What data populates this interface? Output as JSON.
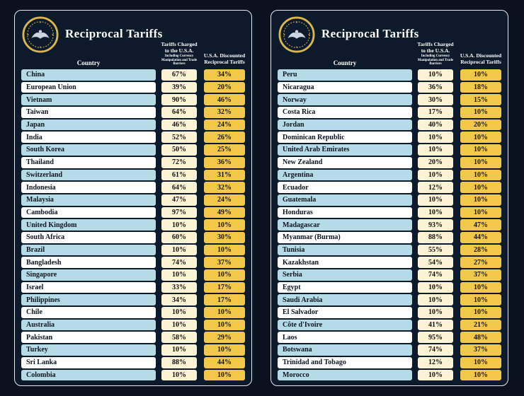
{
  "panels": [
    {
      "title": "Reciprocal Tariffs",
      "country_header": "Country",
      "charged_header_line1": "Tariffs Charged",
      "charged_header_line2": "to the U.S.A.",
      "charged_subheader": "Including Currency Manipulation and Trade Barriers",
      "discounted_header_line1": "U.S.A. Discounted",
      "discounted_header_line2": "Reciprocal Tariffs"
    },
    {
      "title": "Reciprocal Tariffs",
      "country_header": "Country",
      "charged_header_line1": "Tariffs Charged",
      "charged_header_line2": "to the U.S.A.",
      "charged_subheader": "Including Currency Manipulation and Trade Barriers",
      "discounted_header_line1": "U.S.A. Discounted",
      "discounted_header_line2": "Reciprocal Tariffs"
    }
  ],
  "chart_data": [
    {
      "type": "table",
      "title": "Reciprocal Tariffs (board 1)",
      "columns": [
        "Country",
        "Tariffs Charged to the U.S.A. Including Currency Manipulation and Trade Barriers",
        "U.S.A. Discounted Reciprocal Tariffs"
      ],
      "rows": [
        [
          "China",
          "67%",
          "34%"
        ],
        [
          "European Union",
          "39%",
          "20%"
        ],
        [
          "Vietnam",
          "90%",
          "46%"
        ],
        [
          "Taiwan",
          "64%",
          "32%"
        ],
        [
          "Japan",
          "46%",
          "24%"
        ],
        [
          "India",
          "52%",
          "26%"
        ],
        [
          "South Korea",
          "50%",
          "25%"
        ],
        [
          "Thailand",
          "72%",
          "36%"
        ],
        [
          "Switzerland",
          "61%",
          "31%"
        ],
        [
          "Indonesia",
          "64%",
          "32%"
        ],
        [
          "Malaysia",
          "47%",
          "24%"
        ],
        [
          "Cambodia",
          "97%",
          "49%"
        ],
        [
          "United Kingdom",
          "10%",
          "10%"
        ],
        [
          "South Africa",
          "60%",
          "30%"
        ],
        [
          "Brazil",
          "10%",
          "10%"
        ],
        [
          "Bangladesh",
          "74%",
          "37%"
        ],
        [
          "Singapore",
          "10%",
          "10%"
        ],
        [
          "Israel",
          "33%",
          "17%"
        ],
        [
          "Philippines",
          "34%",
          "17%"
        ],
        [
          "Chile",
          "10%",
          "10%"
        ],
        [
          "Australia",
          "10%",
          "10%"
        ],
        [
          "Pakistan",
          "58%",
          "29%"
        ],
        [
          "Turkey",
          "10%",
          "10%"
        ],
        [
          "Sri Lanka",
          "88%",
          "44%"
        ],
        [
          "Colombia",
          "10%",
          "10%"
        ]
      ]
    },
    {
      "type": "table",
      "title": "Reciprocal Tariffs (board 2)",
      "columns": [
        "Country",
        "Tariffs Charged to the U.S.A. Including Currency Manipulation and Trade Barriers",
        "U.S.A. Discounted Reciprocal Tariffs"
      ],
      "rows": [
        [
          "Peru",
          "10%",
          "10%"
        ],
        [
          "Nicaragua",
          "36%",
          "18%"
        ],
        [
          "Norway",
          "30%",
          "15%"
        ],
        [
          "Costa Rica",
          "17%",
          "10%"
        ],
        [
          "Jordan",
          "40%",
          "20%"
        ],
        [
          "Dominican Republic",
          "10%",
          "10%"
        ],
        [
          "United Arab Emirates",
          "10%",
          "10%"
        ],
        [
          "New Zealand",
          "20%",
          "10%"
        ],
        [
          "Argentina",
          "10%",
          "10%"
        ],
        [
          "Ecuador",
          "12%",
          "10%"
        ],
        [
          "Guatemala",
          "10%",
          "10%"
        ],
        [
          "Honduras",
          "10%",
          "10%"
        ],
        [
          "Madagascar",
          "93%",
          "47%"
        ],
        [
          "Myanmar (Burma)",
          "88%",
          "44%"
        ],
        [
          "Tunisia",
          "55%",
          "28%"
        ],
        [
          "Kazakhstan",
          "54%",
          "27%"
        ],
        [
          "Serbia",
          "74%",
          "37%"
        ],
        [
          "Egypt",
          "10%",
          "10%"
        ],
        [
          "Saudi Arabia",
          "10%",
          "10%"
        ],
        [
          "El Salvador",
          "10%",
          "10%"
        ],
        [
          "Côte d'Ivoire",
          "41%",
          "21%"
        ],
        [
          "Laos",
          "95%",
          "48%"
        ],
        [
          "Botswana",
          "74%",
          "37%"
        ],
        [
          "Trinidad and Tobago",
          "12%",
          "10%"
        ],
        [
          "Morocco",
          "10%",
          "10%"
        ]
      ]
    }
  ],
  "colors": {
    "background": "#0a111f",
    "panel_background": "#0d1a2c",
    "panel_border": "#e6e8ec",
    "row_blue": "#b5dbe9",
    "row_white": "#ffffff",
    "charged_box": "#fbf3d3",
    "discounted_box": "#f2c84b",
    "seal_gold": "#d9b64e",
    "text_light": "#ffffff",
    "text_dark": "#0e1520"
  }
}
